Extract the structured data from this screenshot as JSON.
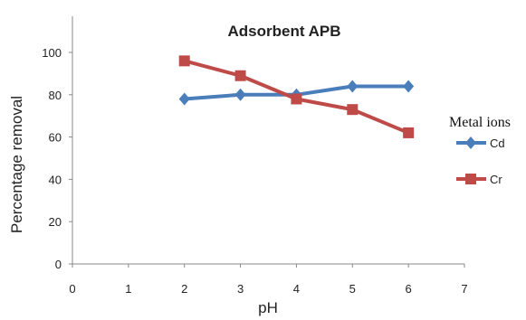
{
  "chart_data": {
    "type": "line",
    "title": "Adsorbent APB",
    "xlabel": "pH",
    "ylabel": "Percentage removal",
    "xlim": [
      0,
      7
    ],
    "ylim": [
      0,
      100
    ],
    "x_ticks": [
      "0",
      "1",
      "2",
      "3",
      "4",
      "5",
      "6",
      "7"
    ],
    "y_ticks": [
      "0",
      "20",
      "40",
      "60",
      "80",
      "100"
    ],
    "grid": false,
    "legend_title": "Metal ions",
    "legend_position": "right",
    "series": [
      {
        "name": "Cd",
        "color": "#4a7ebb",
        "marker": "diamond",
        "x": [
          2,
          3,
          4,
          5,
          6
        ],
        "y": [
          78,
          80,
          80,
          84,
          84
        ]
      },
      {
        "name": "Cr",
        "color": "#be4b48",
        "marker": "square",
        "x": [
          2,
          3,
          4,
          5,
          6
        ],
        "y": [
          96,
          89,
          78,
          73,
          62
        ]
      }
    ]
  }
}
